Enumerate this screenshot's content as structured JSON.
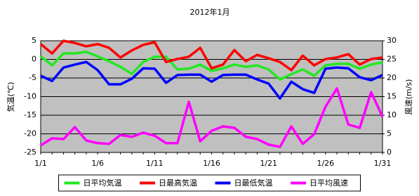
{
  "chart_data": {
    "type": "line",
    "title": "2012年1月",
    "y_label": "気温(℃)",
    "y2_label": "風速(m/s)",
    "categories": [
      "1/1",
      null,
      null,
      null,
      null,
      "1/6",
      null,
      null,
      null,
      null,
      "1/11",
      null,
      null,
      null,
      null,
      "1/16",
      null,
      null,
      null,
      null,
      "1/21",
      null,
      null,
      null,
      null,
      "1/26",
      null,
      null,
      null,
      null,
      "1/31"
    ],
    "ylim": [
      -25,
      5
    ],
    "yticks": [
      -25,
      -20,
      -15,
      -10,
      -5,
      0,
      5
    ],
    "y2lim": [
      0,
      30
    ],
    "y2ticks": [
      0,
      5,
      10,
      15,
      20,
      25,
      30
    ],
    "grid": true,
    "legend": "bottom",
    "background": "#c0c0c0",
    "series": [
      {
        "name": "日平均気温",
        "color": "#22e822",
        "values": [
          0.8,
          -1.6,
          1.6,
          1.6,
          2,
          0.8,
          -0.5,
          -2,
          -3.9,
          -0.7,
          0.7,
          0.7,
          -2.7,
          -2.5,
          -1.4,
          -3.1,
          -2.4,
          -1.4,
          -2,
          -1.6,
          -2.7,
          -5.4,
          -4,
          -2.7,
          -4.4,
          -1.6,
          -1.2,
          -1.2,
          -2.5,
          -1.4,
          -0.8
        ]
      },
      {
        "name": "日最高気温",
        "color": "#ff0000",
        "values": [
          4.1,
          1.6,
          5,
          4.4,
          3.5,
          4.1,
          3.1,
          0.5,
          2.4,
          3.9,
          4.6,
          -0.7,
          0.1,
          0.7,
          3.1,
          -2.4,
          -1.4,
          2.5,
          -0.5,
          1.2,
          0.3,
          -0.7,
          -2.9,
          1,
          -1.6,
          0.1,
          0.5,
          1.4,
          -1.4,
          0.1,
          0.5
        ]
      },
      {
        "name": "日最低気温",
        "color": "#0000ff",
        "values": [
          -4.4,
          -5.8,
          -2.2,
          -1.4,
          -0.7,
          -2.9,
          -6.7,
          -6.7,
          -5.2,
          -2.4,
          -2.5,
          -6.3,
          -4.2,
          -4.1,
          -4.1,
          -6,
          -4.2,
          -4.1,
          -4.1,
          -5.4,
          -6.5,
          -10.5,
          -6,
          -8,
          -9,
          -2.5,
          -2.2,
          -2.4,
          -4.8,
          -5.6,
          -4.2
        ]
      },
      {
        "name": "日平均風速",
        "color": "#ff00ff",
        "axis": "y2",
        "values": [
          1.9,
          3.8,
          3.6,
          6.8,
          3.2,
          2.5,
          2.3,
          4.7,
          4.2,
          5.3,
          4.5,
          2.5,
          2.5,
          13.6,
          3,
          5.8,
          7,
          6.6,
          4.2,
          3.6,
          2.1,
          1.5,
          7,
          2.3,
          4.9,
          12.3,
          17.2,
          7.5,
          6.6,
          16.2,
          9.6
        ]
      }
    ]
  }
}
